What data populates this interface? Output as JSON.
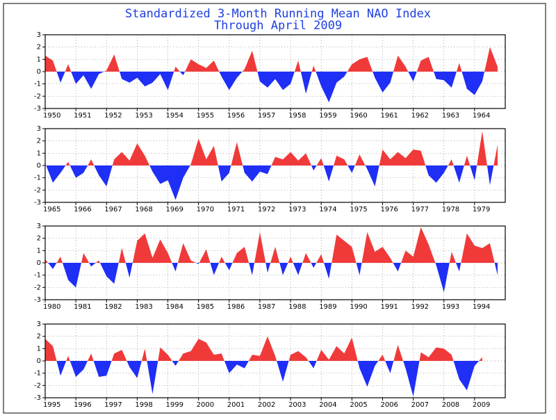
{
  "title": "Standardized 3-Month Running Mean NAO Index",
  "subtitle": "Through April 2009",
  "chart_data": [
    {
      "type": "area",
      "positive_color": "#f03a3a",
      "negative_color": "#1f2ff5",
      "grid": true,
      "xlim": [
        1950,
        1965
      ],
      "ylim": [
        -3,
        3
      ],
      "yticks": [
        -3,
        -2,
        -1,
        0,
        1,
        2,
        3
      ],
      "xticks": [
        1950,
        1951,
        1952,
        1953,
        1954,
        1955,
        1956,
        1957,
        1958,
        1959,
        1960,
        1961,
        1962,
        1963,
        1964
      ],
      "x": [
        1950,
        1950.25,
        1950.5,
        1950.75,
        1951,
        1951.25,
        1951.5,
        1951.75,
        1952,
        1952.25,
        1952.5,
        1952.75,
        1953,
        1953.25,
        1953.5,
        1953.75,
        1954,
        1954.25,
        1954.5,
        1954.75,
        1955,
        1955.25,
        1955.5,
        1955.75,
        1956,
        1956.25,
        1956.5,
        1956.75,
        1957,
        1957.25,
        1957.5,
        1957.75,
        1958,
        1958.25,
        1958.5,
        1958.75,
        1959,
        1959.25,
        1959.5,
        1959.75,
        1960,
        1960.25,
        1960.5,
        1960.75,
        1961,
        1961.25,
        1961.5,
        1961.75,
        1962,
        1962.25,
        1962.5,
        1962.75,
        1963,
        1963.25,
        1963.5,
        1963.75,
        1964,
        1964.25,
        1964.5,
        1964.75
      ],
      "values": [
        1.3,
        0.9,
        -0.9,
        0.6,
        -1.0,
        -0.3,
        -1.4,
        -0.2,
        0.1,
        1.4,
        -0.6,
        -0.9,
        -0.5,
        -1.2,
        -0.9,
        -0.2,
        -1.5,
        0.4,
        -0.3,
        1.0,
        0.6,
        0.3,
        0.9,
        -0.4,
        -1.5,
        -0.5,
        0.2,
        1.7,
        -0.8,
        -1.3,
        -0.6,
        -1.5,
        -1.0,
        0.9,
        -1.8,
        0.5,
        -1.2,
        -2.5,
        -0.9,
        -0.4,
        0.6,
        1.0,
        1.2,
        -0.5,
        -1.7,
        -0.9,
        1.3,
        0.4,
        -0.8,
        0.9,
        1.2,
        -0.6,
        -0.7,
        -1.3,
        0.7,
        -1.4,
        -1.9,
        -0.8,
        2.0,
        0.4
      ]
    },
    {
      "type": "area",
      "positive_color": "#f03a3a",
      "negative_color": "#1f2ff5",
      "grid": true,
      "xlim": [
        1965,
        1980
      ],
      "ylim": [
        -3,
        3
      ],
      "yticks": [
        -3,
        -2,
        -1,
        0,
        1,
        2,
        3
      ],
      "xticks": [
        1965,
        1966,
        1967,
        1968,
        1969,
        1970,
        1971,
        1972,
        1973,
        1974,
        1975,
        1976,
        1977,
        1978,
        1979
      ],
      "x": [
        1965,
        1965.25,
        1965.5,
        1965.75,
        1966,
        1966.25,
        1966.5,
        1966.75,
        1967,
        1967.25,
        1967.5,
        1967.75,
        1968,
        1968.25,
        1968.5,
        1968.75,
        1969,
        1969.25,
        1969.5,
        1969.75,
        1970,
        1970.25,
        1970.5,
        1970.75,
        1971,
        1971.25,
        1971.5,
        1971.75,
        1972,
        1972.25,
        1972.5,
        1972.75,
        1973,
        1973.25,
        1973.5,
        1973.75,
        1974,
        1974.25,
        1974.5,
        1974.75,
        1975,
        1975.25,
        1975.5,
        1975.75,
        1976,
        1976.25,
        1976.5,
        1976.75,
        1977,
        1977.25,
        1977.5,
        1977.75,
        1978,
        1978.25,
        1978.5,
        1978.75,
        1979,
        1979.25,
        1979.5,
        1979.75
      ],
      "values": [
        0.2,
        -1.4,
        -0.6,
        0.3,
        -1.0,
        -0.6,
        0.5,
        -0.8,
        -1.7,
        0.5,
        1.1,
        0.4,
        1.8,
        0.8,
        -0.5,
        -1.5,
        -1.2,
        -2.8,
        -1.0,
        0.1,
        2.2,
        0.5,
        1.6,
        -1.3,
        -0.6,
        1.9,
        -0.6,
        -1.3,
        -0.5,
        -0.7,
        0.7,
        0.5,
        1.1,
        0.4,
        1.0,
        -0.4,
        0.6,
        -1.3,
        0.8,
        0.5,
        -0.6,
        0.9,
        -0.3,
        -1.7,
        1.3,
        0.5,
        1.1,
        0.6,
        1.3,
        1.2,
        -0.8,
        -1.4,
        -0.6,
        0.5,
        -1.4,
        0.8,
        -1.2,
        2.8,
        -1.6,
        1.7
      ]
    },
    {
      "type": "area",
      "positive_color": "#f03a3a",
      "negative_color": "#1f2ff5",
      "grid": true,
      "xlim": [
        1980,
        1995
      ],
      "ylim": [
        -3,
        3
      ],
      "yticks": [
        -3,
        -2,
        -1,
        0,
        1,
        2,
        3
      ],
      "xticks": [
        1980,
        1981,
        1982,
        1983,
        1984,
        1985,
        1986,
        1987,
        1988,
        1989,
        1990,
        1991,
        1992,
        1993,
        1994
      ],
      "x": [
        1980,
        1980.25,
        1980.5,
        1980.75,
        1981,
        1981.25,
        1981.5,
        1981.75,
        1982,
        1982.25,
        1982.5,
        1982.75,
        1983,
        1983.25,
        1983.5,
        1983.75,
        1984,
        1984.25,
        1984.5,
        1984.75,
        1985,
        1985.25,
        1985.5,
        1985.75,
        1986,
        1986.25,
        1986.5,
        1986.75,
        1987,
        1987.25,
        1987.5,
        1987.75,
        1988,
        1988.25,
        1988.5,
        1988.75,
        1989,
        1989.25,
        1989.5,
        1989.75,
        1990,
        1990.25,
        1990.5,
        1990.75,
        1991,
        1991.25,
        1991.5,
        1991.75,
        1992,
        1992.25,
        1992.5,
        1992.75,
        1993,
        1993.25,
        1993.5,
        1993.75,
        1994,
        1994.25,
        1994.5,
        1994.75
      ],
      "values": [
        0.3,
        -0.5,
        0.5,
        -1.4,
        -2.0,
        0.8,
        -0.3,
        0.2,
        -1.1,
        -1.7,
        1.2,
        -1.2,
        1.8,
        2.4,
        0.4,
        1.9,
        0.8,
        -0.7,
        1.6,
        0.2,
        -0.1,
        1.1,
        -1.0,
        0.5,
        -0.6,
        0.8,
        1.3,
        -1.0,
        2.5,
        -0.8,
        1.3,
        -1.0,
        0.5,
        -1.0,
        0.8,
        -0.4,
        0.7,
        -1.3,
        2.3,
        1.8,
        1.3,
        -1.0,
        2.5,
        0.9,
        1.3,
        0.4,
        -0.7,
        1.0,
        0.5,
        2.9,
        1.5,
        -0.2,
        -2.4,
        0.9,
        -0.7,
        2.4,
        1.4,
        1.2,
        1.6,
        -1.0
      ]
    },
    {
      "type": "area",
      "positive_color": "#f03a3a",
      "negative_color": "#1f2ff5",
      "grid": true,
      "xlim": [
        1995,
        2010
      ],
      "ylim": [
        -3,
        3
      ],
      "yticks": [
        -3,
        -2,
        -1,
        0,
        1,
        2,
        3
      ],
      "xticks": [
        1995,
        1996,
        1997,
        1998,
        1999,
        2000,
        2001,
        2002,
        2003,
        2004,
        2005,
        2006,
        2007,
        2008,
        2009
      ],
      "x": [
        1995,
        1995.25,
        1995.5,
        1995.75,
        1996,
        1996.25,
        1996.5,
        1996.75,
        1997,
        1997.25,
        1997.5,
        1997.75,
        1998,
        1998.25,
        1998.5,
        1998.75,
        1999,
        1999.25,
        1999.5,
        1999.75,
        2000,
        2000.25,
        2000.5,
        2000.75,
        2001,
        2001.25,
        2001.5,
        2001.75,
        2002,
        2002.25,
        2002.5,
        2002.75,
        2003,
        2003.25,
        2003.5,
        2003.75,
        2004,
        2004.25,
        2004.5,
        2004.75,
        2005,
        2005.25,
        2005.5,
        2005.75,
        2006,
        2006.25,
        2006.5,
        2006.75,
        2007,
        2007.25,
        2007.5,
        2007.75,
        2008,
        2008.25,
        2008.5,
        2008.75,
        2009,
        2009.25
      ],
      "values": [
        1.8,
        1.2,
        -1.2,
        0.4,
        -1.3,
        -0.7,
        0.6,
        -1.3,
        -1.2,
        0.6,
        0.9,
        -0.5,
        -1.4,
        1.0,
        -2.7,
        1.1,
        0.5,
        -0.4,
        0.6,
        0.8,
        1.8,
        1.5,
        0.5,
        0.6,
        -1.0,
        -0.3,
        -0.6,
        0.5,
        0.4,
        2.0,
        0.4,
        -1.7,
        0.5,
        0.8,
        0.3,
        -0.6,
        0.9,
        0.1,
        1.2,
        0.6,
        1.9,
        -0.6,
        -2.1,
        -0.4,
        0.5,
        -1.0,
        1.3,
        -0.6,
        -2.9,
        0.7,
        0.3,
        1.1,
        1.0,
        0.5,
        -1.5,
        -2.4,
        -0.4,
        0.3
      ]
    }
  ]
}
